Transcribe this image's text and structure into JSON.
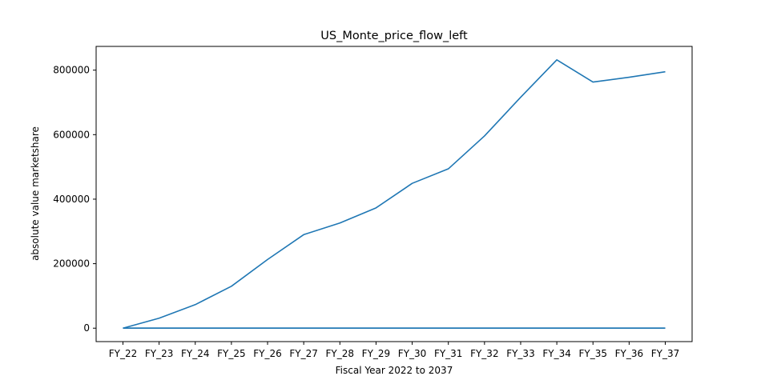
{
  "chart_data": {
    "type": "line",
    "title": "US_Monte_price_flow_left",
    "xlabel": "Fiscal Year 2022 to 2037",
    "ylabel": "absolute value marketshare",
    "categories": [
      "FY_22",
      "FY_23",
      "FY_24",
      "FY_25",
      "FY_26",
      "FY_27",
      "FY_28",
      "FY_29",
      "FY_30",
      "FY_31",
      "FY_32",
      "FY_33",
      "FY_34",
      "FY_35",
      "FY_36",
      "FY_37"
    ],
    "series": [
      {
        "color": "#1f77b4",
        "values": [
          0,
          31000,
          73000,
          130000,
          213000,
          290000,
          326000,
          373000,
          449000,
          494000,
          596000,
          716000,
          832000,
          763000,
          778000,
          795000
        ]
      },
      {
        "color": "#1f77b4",
        "values": [
          0,
          0,
          0,
          0,
          0,
          0,
          0,
          0,
          0,
          0,
          0,
          0,
          0,
          0,
          0,
          0
        ]
      },
      {
        "color": "#1f77b4",
        "values": [
          0,
          0,
          0,
          0,
          0,
          0,
          0,
          0,
          0,
          0,
          0,
          0,
          0,
          0,
          0,
          0
        ]
      }
    ],
    "yticks": [
      0,
      200000,
      400000,
      600000,
      800000
    ],
    "ytick_labels": [
      "0",
      "200000",
      "400000",
      "600000",
      "800000"
    ],
    "ylim": [
      -41600,
      873600
    ],
    "grid": false,
    "legend": "none"
  }
}
